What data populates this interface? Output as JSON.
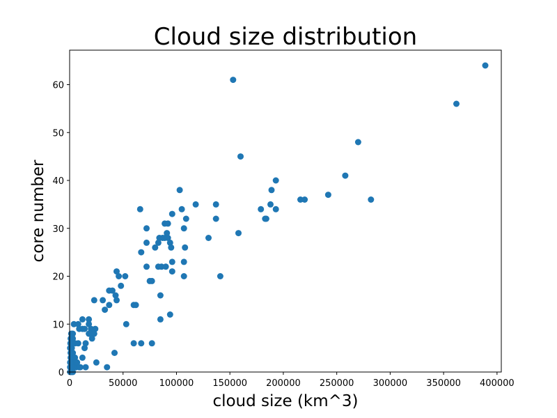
{
  "chart_data": {
    "type": "scatter",
    "title": "Cloud size distribution",
    "xlabel": "cloud size (km^3)",
    "ylabel": "core number",
    "xlim": [
      0,
      404000
    ],
    "ylim": [
      0,
      67.2
    ],
    "xticks": [
      0,
      50000,
      100000,
      150000,
      200000,
      250000,
      300000,
      350000,
      400000
    ],
    "yticks": [
      0,
      10,
      20,
      30,
      40,
      50,
      60
    ],
    "grid": false,
    "legend": "none",
    "marker_color": "#1f77b4",
    "points": [
      [
        389000,
        64
      ],
      [
        362000,
        56
      ],
      [
        153000,
        61
      ],
      [
        270000,
        48
      ],
      [
        160000,
        45
      ],
      [
        258000,
        41
      ],
      [
        193000,
        40
      ],
      [
        103000,
        38
      ],
      [
        189000,
        38
      ],
      [
        242000,
        37
      ],
      [
        216000,
        36
      ],
      [
        220000,
        36
      ],
      [
        282000,
        36
      ],
      [
        118000,
        35
      ],
      [
        137000,
        35
      ],
      [
        188000,
        35
      ],
      [
        66000,
        34
      ],
      [
        105000,
        34
      ],
      [
        179000,
        34
      ],
      [
        193000,
        34
      ],
      [
        96000,
        33
      ],
      [
        109000,
        32
      ],
      [
        137000,
        32
      ],
      [
        183000,
        32
      ],
      [
        184000,
        32
      ],
      [
        89000,
        31
      ],
      [
        92000,
        31
      ],
      [
        72000,
        30
      ],
      [
        107000,
        30
      ],
      [
        91000,
        29
      ],
      [
        158000,
        29
      ],
      [
        84000,
        28
      ],
      [
        87000,
        28
      ],
      [
        89000,
        28
      ],
      [
        92000,
        28
      ],
      [
        130000,
        28
      ],
      [
        72000,
        27
      ],
      [
        83000,
        27
      ],
      [
        94000,
        27
      ],
      [
        80000,
        26
      ],
      [
        95000,
        26
      ],
      [
        108000,
        26
      ],
      [
        67000,
        25
      ],
      [
        86000,
        22
      ],
      [
        90000,
        22
      ],
      [
        72000,
        22
      ],
      [
        83000,
        22
      ],
      [
        96000,
        23
      ],
      [
        107000,
        23
      ],
      [
        44000,
        21
      ],
      [
        96000,
        21
      ],
      [
        46000,
        20
      ],
      [
        52000,
        20
      ],
      [
        107000,
        20
      ],
      [
        141000,
        20
      ],
      [
        75000,
        19
      ],
      [
        77000,
        19
      ],
      [
        48000,
        18
      ],
      [
        37000,
        17
      ],
      [
        40000,
        17
      ],
      [
        43000,
        16
      ],
      [
        85000,
        16
      ],
      [
        23000,
        15
      ],
      [
        31000,
        15
      ],
      [
        44000,
        15
      ],
      [
        37000,
        14
      ],
      [
        60000,
        14
      ],
      [
        62000,
        14
      ],
      [
        33000,
        13
      ],
      [
        94000,
        12
      ],
      [
        12000,
        11
      ],
      [
        18000,
        11
      ],
      [
        85000,
        11
      ],
      [
        4000,
        10
      ],
      [
        8000,
        10
      ],
      [
        18000,
        10
      ],
      [
        53000,
        10
      ],
      [
        9000,
        9
      ],
      [
        12000,
        9
      ],
      [
        14000,
        9
      ],
      [
        20000,
        9
      ],
      [
        24000,
        9
      ],
      [
        18000,
        8
      ],
      [
        22000,
        8
      ],
      [
        3000,
        8
      ],
      [
        19000,
        8
      ],
      [
        23000,
        8
      ],
      [
        21000,
        7
      ],
      [
        1000,
        7
      ],
      [
        3000,
        7
      ],
      [
        5000,
        6
      ],
      [
        8000,
        6
      ],
      [
        15000,
        6
      ],
      [
        60000,
        6
      ],
      [
        67000,
        6
      ],
      [
        77000,
        6
      ],
      [
        14000,
        5
      ],
      [
        2000,
        5
      ],
      [
        42000,
        4
      ],
      [
        1000,
        4
      ],
      [
        3000,
        4
      ],
      [
        12000,
        3
      ],
      [
        1000,
        3
      ],
      [
        2000,
        3
      ],
      [
        4000,
        2
      ],
      [
        25000,
        2
      ],
      [
        1000,
        2
      ],
      [
        3000,
        1
      ],
      [
        6000,
        1
      ],
      [
        10000,
        1
      ],
      [
        15000,
        1
      ],
      [
        35000,
        1
      ],
      [
        500,
        1
      ],
      [
        500,
        0
      ],
      [
        1500,
        0
      ],
      [
        3000,
        0
      ],
      [
        500,
        5
      ],
      [
        800,
        6
      ],
      [
        1500,
        8
      ],
      [
        2000,
        1
      ],
      [
        5000,
        3
      ],
      [
        7000,
        2
      ],
      [
        9000,
        1
      ],
      [
        500,
        2
      ],
      [
        1000,
        6
      ]
    ]
  }
}
